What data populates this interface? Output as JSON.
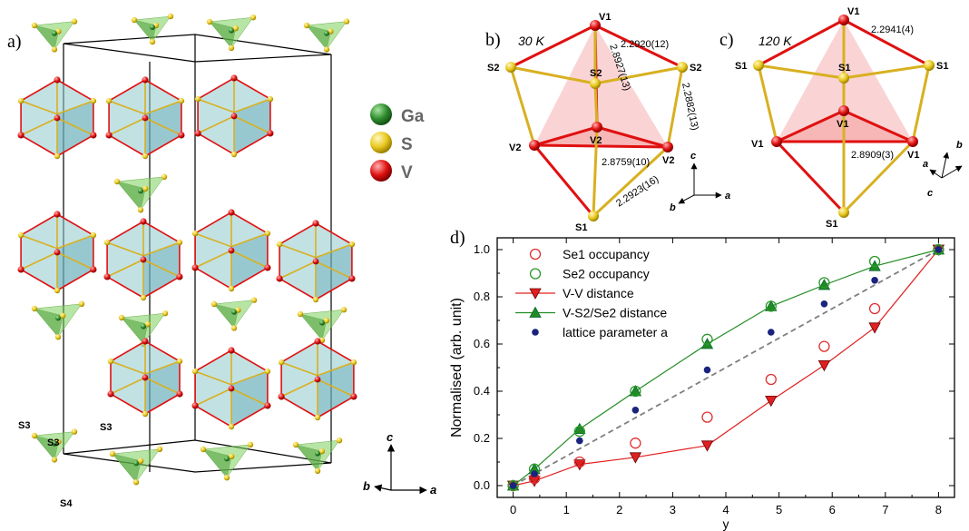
{
  "panels": {
    "a": {
      "label": "a)",
      "legend": [
        {
          "name": "Ga",
          "color": "#2e8b2e"
        },
        {
          "name": "S",
          "color": "#e8c81e"
        },
        {
          "name": "V",
          "color": "#e01010"
        }
      ],
      "site_labels": [
        "S3",
        "S3",
        "S3",
        "S4"
      ],
      "axes": {
        "c": "c",
        "a": "a",
        "b": "b"
      },
      "colors": {
        "tetra": "#7ccf5c",
        "cube": "#8fc8cc",
        "bond_v": "#e01010",
        "bond_s": "#d8b020"
      }
    },
    "b": {
      "label": "b)",
      "temperature": "30 K",
      "atoms": {
        "top": "V1",
        "left_upper": "S2",
        "right_upper": "S2",
        "center_upper": "S2",
        "center": "V2",
        "left_lower": "V2",
        "right_lower": "V2",
        "bottom": "S1"
      },
      "distances": [
        "2.2920(12)",
        "2.8927(13)",
        "2.2882(13)",
        "2.8759(10)",
        "2.2923(16)"
      ],
      "axes": {
        "c": "c",
        "a": "a",
        "b": "b"
      }
    },
    "c": {
      "label": "c)",
      "temperature": "120 K",
      "atoms": {
        "top": "V1",
        "left_upper": "S1",
        "right_upper": "S1",
        "center_upper": "S1",
        "center": "V1",
        "left_lower": "V1",
        "right_lower": "V1",
        "bottom": "S1"
      },
      "distances": [
        "2.2941(4)",
        "2.8909(3)"
      ],
      "axes": {
        "b": "b",
        "a": "a",
        "c": "c"
      }
    },
    "d": {
      "label": "d)"
    }
  },
  "chart_data": {
    "type": "scatter",
    "xlabel": "y",
    "ylabel": "Normalised (arb. unit)",
    "xlim": [
      -0.3,
      8.3
    ],
    "ylim": [
      -0.05,
      1.05
    ],
    "x_ticks": [
      0,
      1,
      2,
      3,
      4,
      5,
      6,
      7,
      8
    ],
    "y_ticks": [
      "0.0",
      "0.2",
      "0.4",
      "0.6",
      "0.8",
      "1.0"
    ],
    "grid": false,
    "legend_position": "top-left",
    "series": [
      {
        "name": "Se1 occupancy",
        "marker": "open-circle",
        "color": "#e03030",
        "x": [
          0,
          0.4,
          1.25,
          2.3,
          3.65,
          4.85,
          5.85,
          6.8,
          8
        ],
        "y": [
          0.0,
          0.03,
          0.1,
          0.18,
          0.29,
          0.45,
          0.59,
          0.75,
          1.0
        ]
      },
      {
        "name": "Se2 occupancy",
        "marker": "open-circle",
        "color": "#2a9a2a",
        "x": [
          0,
          0.4,
          1.25,
          2.3,
          3.65,
          4.85,
          5.85,
          6.8,
          8
        ],
        "y": [
          0.0,
          0.07,
          0.23,
          0.4,
          0.62,
          0.76,
          0.86,
          0.95,
          1.0
        ]
      },
      {
        "name": "V-V distance",
        "marker": "triangle-down",
        "color": "#e02020",
        "line": true,
        "x": [
          0,
          0.4,
          1.25,
          2.3,
          3.65,
          4.85,
          5.85,
          6.8,
          8
        ],
        "y": [
          0.0,
          0.02,
          0.09,
          0.12,
          0.17,
          0.36,
          0.51,
          0.67,
          1.0
        ]
      },
      {
        "name": "V-S2/Se2 distance",
        "marker": "triangle-up",
        "color": "#228b22",
        "line": true,
        "x": [
          0,
          0.4,
          1.25,
          2.3,
          3.65,
          4.85,
          5.85,
          6.8,
          8
        ],
        "y": [
          0.0,
          0.07,
          0.24,
          0.4,
          0.6,
          0.76,
          0.85,
          0.93,
          1.0
        ]
      },
      {
        "name": "lattice parameter a",
        "marker": "filled-circle",
        "color": "#1a237e",
        "x": [
          0,
          0.4,
          1.25,
          2.3,
          3.65,
          4.85,
          5.85,
          6.8,
          8
        ],
        "y": [
          0.0,
          0.05,
          0.19,
          0.32,
          0.49,
          0.65,
          0.77,
          0.87,
          1.0
        ]
      }
    ],
    "reference_line": {
      "style": "dashed",
      "color": "#7f7f7f",
      "x": [
        0,
        8
      ],
      "y": [
        0,
        1
      ]
    }
  }
}
